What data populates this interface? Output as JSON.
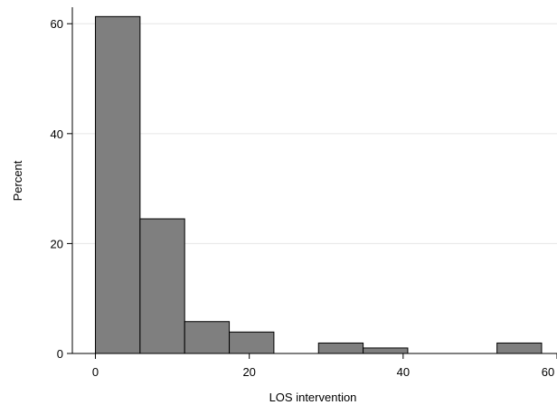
{
  "chart_data": {
    "type": "bar",
    "title": "",
    "xlabel": "LOS intervention",
    "ylabel": "Percent",
    "bin_edges": [
      0,
      5.8,
      11.6,
      17.4,
      23.2,
      29.0,
      34.8,
      40.6,
      46.4,
      52.2,
      58.0
    ],
    "values": [
      61.3,
      24.5,
      5.8,
      3.9,
      0,
      1.9,
      1.0,
      0,
      0,
      1.9
    ],
    "xlim": [
      -3,
      60
    ],
    "ylim": [
      0,
      63
    ],
    "xticks": [
      0,
      20,
      40,
      60
    ],
    "yticks": [
      0,
      20,
      40,
      60
    ],
    "xtick_labels": [
      "0",
      "20",
      "40",
      "60"
    ],
    "ytick_labels": [
      "0",
      "20",
      "40",
      "60"
    ],
    "grid": "horizontal",
    "legend": "none",
    "colors": {
      "bar_fill": "#7f7f7f",
      "bar_stroke": "#000000",
      "grid": "#e6e6e6",
      "axis": "#000000"
    }
  }
}
